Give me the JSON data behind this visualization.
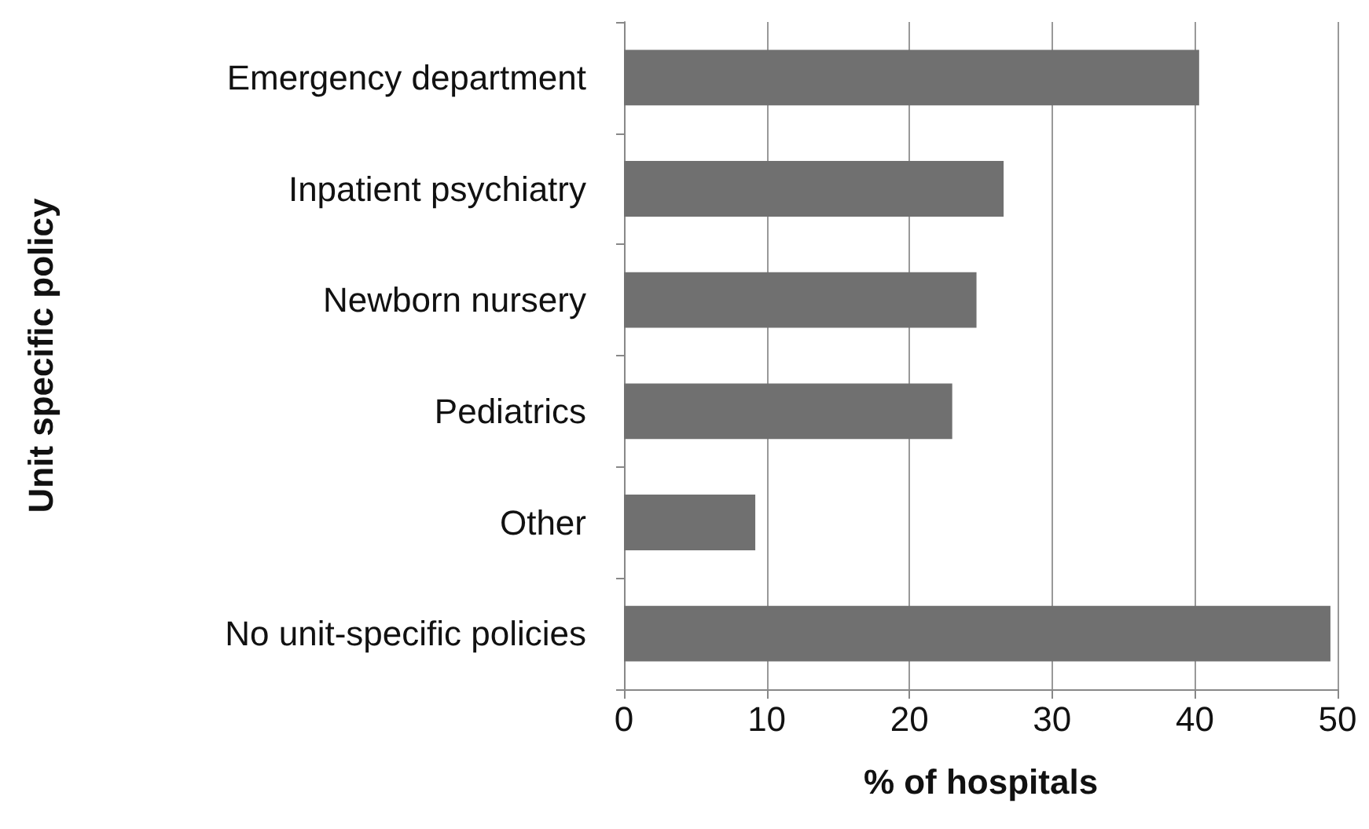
{
  "chart_data": {
    "type": "bar",
    "orientation": "horizontal",
    "xlabel": "% of hospitals",
    "ylabel": "Unit specific policy",
    "categories": [
      "Emergency department",
      "Inpatient psychiatry",
      "Newborn nursery",
      "Pediatrics",
      "Other",
      "No unit-specific policies"
    ],
    "values": [
      40.3,
      26.6,
      24.7,
      23.0,
      9.2,
      49.5
    ],
    "color": "#707070",
    "xlim": [
      0,
      50
    ],
    "xticks": [
      0,
      10,
      20,
      30,
      40,
      50
    ],
    "grid": "x"
  }
}
